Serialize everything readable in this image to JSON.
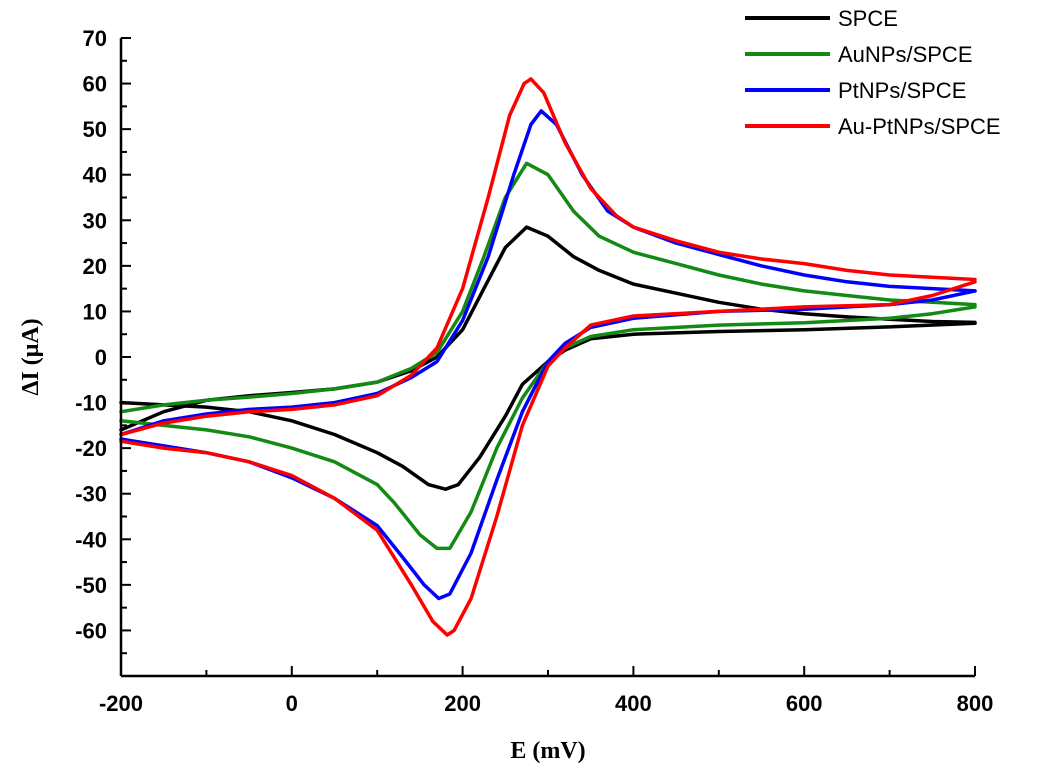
{
  "chart_data": {
    "type": "line",
    "title": "",
    "xlabel": "E (mV)",
    "ylabel": "ΔI (μA)",
    "xlim": [
      -200,
      800
    ],
    "ylim": [
      -70,
      70
    ],
    "x_ticks": [
      -200,
      0,
      200,
      400,
      600,
      800
    ],
    "y_ticks": [
      -60,
      -50,
      -40,
      -30,
      -20,
      -10,
      0,
      10,
      20,
      30,
      40,
      50,
      60,
      70
    ],
    "grid": false,
    "legend_position": "top-right",
    "series": [
      {
        "name": "SPCE",
        "color": "#000000",
        "forward": [
          [
            -200,
            -16
          ],
          [
            -150,
            -12
          ],
          [
            -100,
            -9.5
          ],
          [
            -50,
            -8.5
          ],
          [
            0,
            -7.8
          ],
          [
            50,
            -7
          ],
          [
            100,
            -5.5
          ],
          [
            140,
            -3
          ],
          [
            170,
            0
          ],
          [
            200,
            6
          ],
          [
            225,
            15
          ],
          [
            250,
            24
          ],
          [
            275,
            28.5
          ],
          [
            300,
            26.5
          ],
          [
            330,
            22
          ],
          [
            360,
            19
          ],
          [
            400,
            16
          ],
          [
            450,
            14
          ],
          [
            500,
            12
          ],
          [
            550,
            10.5
          ],
          [
            600,
            9.5
          ],
          [
            650,
            8.8
          ],
          [
            700,
            8.3
          ],
          [
            750,
            7.8
          ],
          [
            800,
            7.6
          ]
        ],
        "reverse": [
          [
            800,
            7.4
          ],
          [
            700,
            6.6
          ],
          [
            600,
            6
          ],
          [
            500,
            5.6
          ],
          [
            400,
            5
          ],
          [
            350,
            4
          ],
          [
            320,
            1.5
          ],
          [
            300,
            -1
          ],
          [
            270,
            -6
          ],
          [
            250,
            -13
          ],
          [
            220,
            -22
          ],
          [
            195,
            -28
          ],
          [
            180,
            -29
          ],
          [
            160,
            -28
          ],
          [
            130,
            -24
          ],
          [
            100,
            -21
          ],
          [
            50,
            -17
          ],
          [
            0,
            -14
          ],
          [
            -50,
            -12
          ],
          [
            -100,
            -11
          ],
          [
            -150,
            -10.5
          ],
          [
            -200,
            -10
          ]
        ]
      },
      {
        "name": "AuNPs/SPCE",
        "color": "#138a13",
        "forward": [
          [
            -200,
            -12
          ],
          [
            -150,
            -10.5
          ],
          [
            -100,
            -9.5
          ],
          [
            -50,
            -8.8
          ],
          [
            0,
            -8
          ],
          [
            50,
            -7
          ],
          [
            100,
            -5.5
          ],
          [
            140,
            -2.5
          ],
          [
            170,
            1
          ],
          [
            200,
            10
          ],
          [
            225,
            22
          ],
          [
            250,
            35
          ],
          [
            275,
            42.5
          ],
          [
            300,
            40
          ],
          [
            330,
            32
          ],
          [
            360,
            26.5
          ],
          [
            400,
            23
          ],
          [
            450,
            20.5
          ],
          [
            500,
            18
          ],
          [
            550,
            16
          ],
          [
            600,
            14.5
          ],
          [
            650,
            13.5
          ],
          [
            700,
            12.5
          ],
          [
            750,
            12
          ],
          [
            800,
            11.5
          ]
        ],
        "reverse": [
          [
            800,
            11
          ],
          [
            750,
            9.5
          ],
          [
            700,
            8.5
          ],
          [
            600,
            7.5
          ],
          [
            500,
            7
          ],
          [
            400,
            6
          ],
          [
            350,
            4.5
          ],
          [
            320,
            2
          ],
          [
            300,
            -1
          ],
          [
            270,
            -9
          ],
          [
            240,
            -20
          ],
          [
            210,
            -34
          ],
          [
            185,
            -42
          ],
          [
            170,
            -42
          ],
          [
            150,
            -39
          ],
          [
            120,
            -32
          ],
          [
            100,
            -28
          ],
          [
            50,
            -23
          ],
          [
            0,
            -20
          ],
          [
            -50,
            -17.5
          ],
          [
            -100,
            -16
          ],
          [
            -150,
            -15
          ],
          [
            -200,
            -14
          ]
        ]
      },
      {
        "name": "PtNPs/SPCE",
        "color": "#0000ff",
        "forward": [
          [
            -200,
            -17
          ],
          [
            -150,
            -14
          ],
          [
            -100,
            -12.5
          ],
          [
            -50,
            -11.5
          ],
          [
            0,
            -11
          ],
          [
            50,
            -10
          ],
          [
            100,
            -8
          ],
          [
            140,
            -4.5
          ],
          [
            170,
            -1
          ],
          [
            200,
            8
          ],
          [
            230,
            22
          ],
          [
            260,
            40
          ],
          [
            280,
            51
          ],
          [
            292,
            54
          ],
          [
            310,
            51
          ],
          [
            340,
            40
          ],
          [
            370,
            32
          ],
          [
            400,
            28.5
          ],
          [
            450,
            25
          ],
          [
            500,
            22.5
          ],
          [
            550,
            20
          ],
          [
            600,
            18
          ],
          [
            650,
            16.5
          ],
          [
            700,
            15.5
          ],
          [
            750,
            15
          ],
          [
            800,
            14.5
          ]
        ],
        "reverse": [
          [
            800,
            14.5
          ],
          [
            750,
            12.5
          ],
          [
            700,
            11.5
          ],
          [
            600,
            10.5
          ],
          [
            500,
            10
          ],
          [
            400,
            8.5
          ],
          [
            350,
            6.5
          ],
          [
            320,
            3
          ],
          [
            300,
            -1
          ],
          [
            270,
            -12
          ],
          [
            240,
            -27
          ],
          [
            210,
            -43
          ],
          [
            185,
            -52
          ],
          [
            172,
            -53
          ],
          [
            155,
            -50
          ],
          [
            130,
            -44
          ],
          [
            100,
            -37
          ],
          [
            50,
            -31
          ],
          [
            0,
            -26.5
          ],
          [
            -50,
            -23
          ],
          [
            -100,
            -21
          ],
          [
            -150,
            -19.5
          ],
          [
            -200,
            -18
          ]
        ]
      },
      {
        "name": "Au-PtNPs/SPCE",
        "color": "#ff0000",
        "forward": [
          [
            -200,
            -17
          ],
          [
            -150,
            -14.5
          ],
          [
            -100,
            -13
          ],
          [
            -50,
            -12
          ],
          [
            0,
            -11.5
          ],
          [
            50,
            -10.5
          ],
          [
            100,
            -8.5
          ],
          [
            140,
            -4
          ],
          [
            170,
            2
          ],
          [
            200,
            15
          ],
          [
            230,
            35
          ],
          [
            255,
            53
          ],
          [
            272,
            60
          ],
          [
            280,
            61
          ],
          [
            295,
            58
          ],
          [
            320,
            47
          ],
          [
            350,
            37
          ],
          [
            380,
            31
          ],
          [
            400,
            28.5
          ],
          [
            450,
            25.5
          ],
          [
            500,
            23
          ],
          [
            550,
            21.5
          ],
          [
            600,
            20.5
          ],
          [
            650,
            19
          ],
          [
            700,
            18
          ],
          [
            750,
            17.5
          ],
          [
            800,
            17
          ]
        ],
        "reverse": [
          [
            800,
            16.5
          ],
          [
            750,
            13.5
          ],
          [
            700,
            11.5
          ],
          [
            600,
            11
          ],
          [
            500,
            10
          ],
          [
            400,
            9
          ],
          [
            350,
            7
          ],
          [
            320,
            2
          ],
          [
            300,
            -2
          ],
          [
            270,
            -15
          ],
          [
            240,
            -35
          ],
          [
            210,
            -53
          ],
          [
            190,
            -60
          ],
          [
            182,
            -61
          ],
          [
            165,
            -58
          ],
          [
            140,
            -50
          ],
          [
            110,
            -41
          ],
          [
            100,
            -38
          ],
          [
            50,
            -31
          ],
          [
            0,
            -26
          ],
          [
            -50,
            -23
          ],
          [
            -100,
            -21
          ],
          [
            -150,
            -20
          ],
          [
            -200,
            -18.5
          ]
        ]
      }
    ]
  }
}
